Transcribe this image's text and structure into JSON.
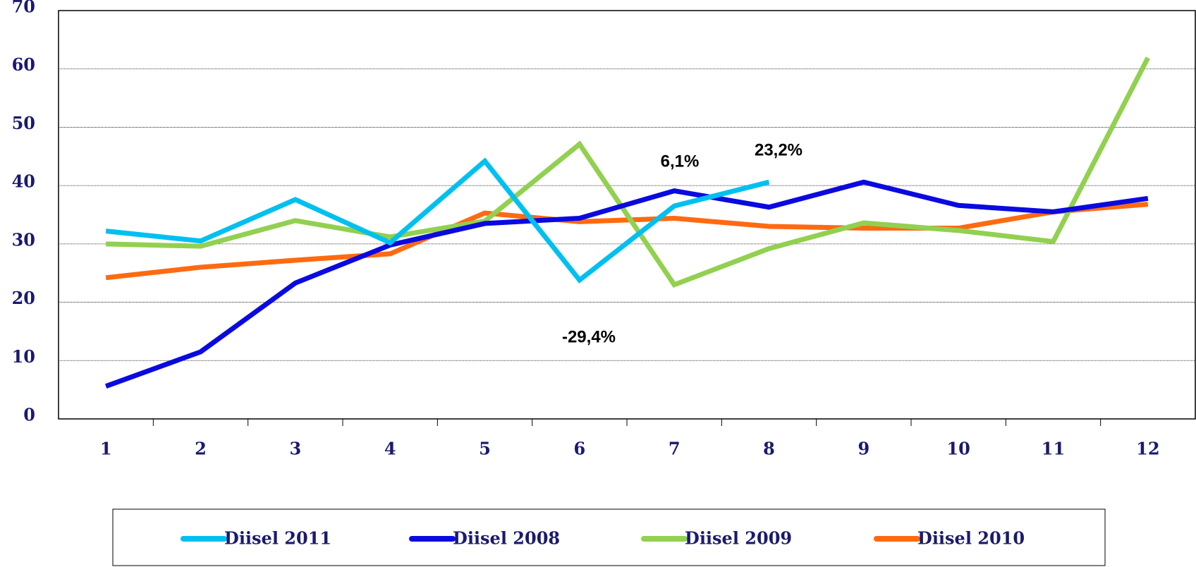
{
  "chart_data": {
    "type": "line",
    "categories": [
      "1",
      "2",
      "3",
      "4",
      "5",
      "6",
      "7",
      "8",
      "9",
      "10",
      "11",
      "12"
    ],
    "series": [
      {
        "name": "Diisel 2011",
        "color": "#00c0f0",
        "values": [
          32.2,
          30.5,
          37.6,
          30.2,
          44.2,
          23.8,
          36.5,
          40.6,
          null,
          null,
          null,
          null
        ]
      },
      {
        "name": "Diisel 2008",
        "color": "#0a0ae0",
        "values": [
          5.6,
          11.5,
          23.3,
          29.8,
          33.5,
          34.4,
          39.1,
          36.3,
          40.6,
          36.6,
          35.5,
          37.8
        ]
      },
      {
        "name": "Diisel 2009",
        "color": "#92d050",
        "values": [
          30.0,
          29.6,
          34.0,
          31.2,
          33.9,
          47.1,
          23.0,
          29.2,
          33.6,
          32.3,
          30.4,
          61.9
        ]
      },
      {
        "name": "Diisel 2010",
        "color": "#ff6a10",
        "values": [
          24.2,
          26.0,
          27.2,
          28.3,
          35.3,
          33.8,
          34.4,
          33.0,
          32.7,
          32.7,
          35.5,
          36.8
        ]
      }
    ],
    "ylim": [
      0,
      70
    ],
    "yticks": [
      0,
      10,
      20,
      30,
      40,
      50,
      60,
      70
    ],
    "grid": true,
    "annotations": [
      "6,1%",
      "23,2%",
      "-29,4%"
    ],
    "legend": "bottom"
  }
}
